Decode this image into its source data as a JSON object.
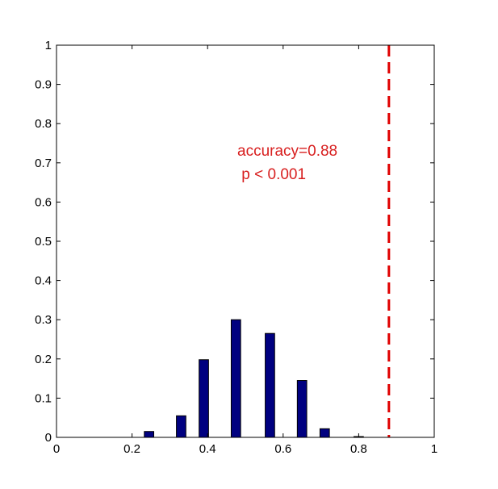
{
  "chart_data": {
    "type": "bar",
    "title": "",
    "xlabel": "",
    "ylabel": "",
    "xlim": [
      0,
      1
    ],
    "ylim": [
      0,
      1
    ],
    "x_ticks": [
      "0",
      "0.2",
      "0.4",
      "0.6",
      "0.8",
      "1"
    ],
    "y_ticks": [
      "0",
      "0.1",
      "0.2",
      "0.3",
      "0.4",
      "0.5",
      "0.6",
      "0.7",
      "0.8",
      "0.9",
      "1"
    ],
    "grid": false,
    "bar_color": "#000080",
    "bar_width": 0.025,
    "x": [
      0.245,
      0.33,
      0.39,
      0.475,
      0.565,
      0.65,
      0.71,
      0.8
    ],
    "values": [
      0.015,
      0.055,
      0.198,
      0.3,
      0.265,
      0.145,
      0.022,
      0.002
    ],
    "reference_line": {
      "x": 0.88,
      "color": "#e00000",
      "style": "dashed"
    },
    "annotation": {
      "line1": "accuracy=0.88",
      "line2": " p < 0.001",
      "color": "#d82020"
    }
  }
}
